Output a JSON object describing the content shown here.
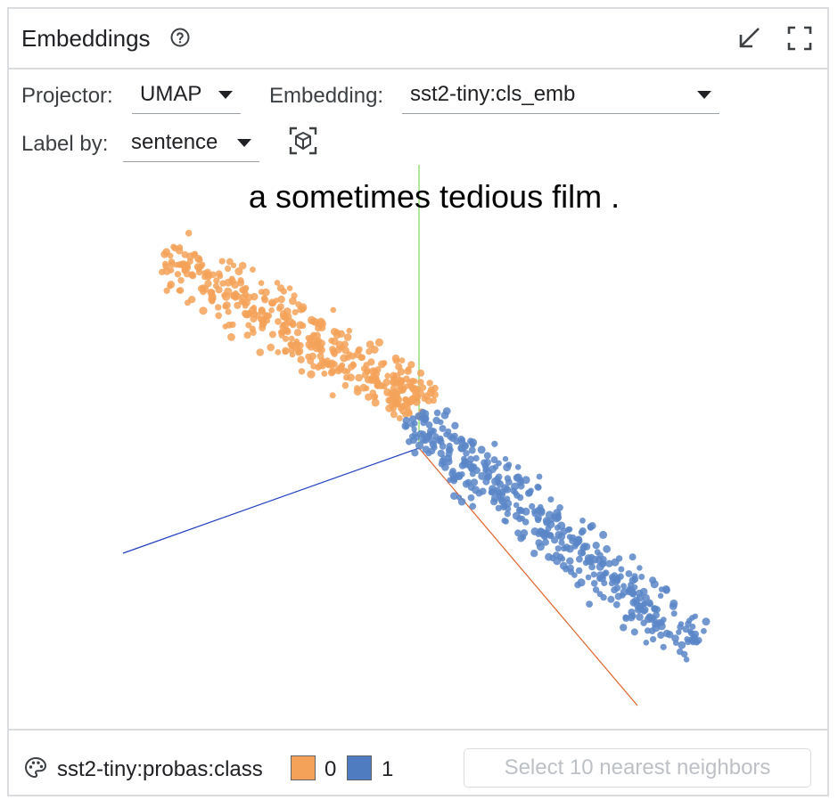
{
  "panel": {
    "title": "Embeddings",
    "icons": {
      "help": "help-circle-icon",
      "minimize": "minimize-arrow-icon",
      "maximize": "fullscreen-icon"
    }
  },
  "controls": {
    "projector_label": "Projector:",
    "projector_value": "UMAP",
    "embedding_label": "Embedding:",
    "embedding_value": "sst2-tiny:cls_emb",
    "labelby_label": "Label by:",
    "labelby_value": "sentence",
    "reset_view_icon": "cube-focus-icon"
  },
  "hover_label": "a sometimes tedious film .",
  "footer": {
    "palette_icon": "palette-icon",
    "color_field": "sst2-tiny:probas:class",
    "legend": [
      {
        "label": "0",
        "color": "#f4a259"
      },
      {
        "label": "1",
        "color": "#4f7cc0"
      }
    ],
    "nn_button": "Select 10 nearest neighbors"
  },
  "colors": {
    "class0": "#f4a259",
    "class1": "#5b86c8",
    "axis_x": "#e0622a",
    "axis_y": "#7ed957",
    "axis_z": "#1f3fbf",
    "border": "#dadce0"
  }
}
